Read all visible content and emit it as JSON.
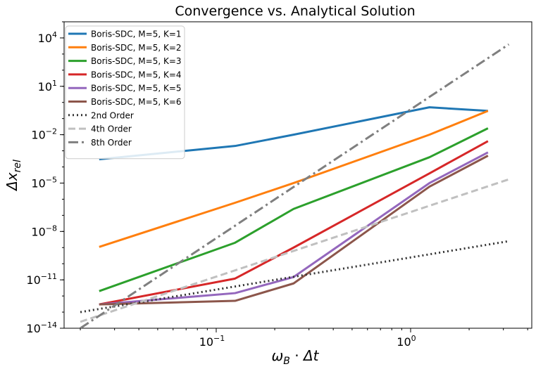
{
  "chart_data": {
    "type": "line",
    "title": "Convergence vs. Analytical Solution",
    "xlabel": "ω_B · Δt",
    "ylabel": "Δx_rel",
    "xscale": "log",
    "yscale": "log",
    "xlim": [
      0.0165,
      4.2
    ],
    "ylim": [
      1e-14,
      100000.0
    ],
    "x_ticks": [
      {
        "value": 0.1,
        "base": "10",
        "exp": "−1"
      },
      {
        "value": 1,
        "base": "10",
        "exp": "0"
      }
    ],
    "y_ticks": [
      {
        "value": 1e-14,
        "base": "10",
        "exp": "−14"
      },
      {
        "value": 1e-11,
        "base": "10",
        "exp": "−11"
      },
      {
        "value": 1e-08,
        "base": "10",
        "exp": "−8"
      },
      {
        "value": 1e-05,
        "base": "10",
        "exp": "−5"
      },
      {
        "value": 0.01,
        "base": "10",
        "exp": "−2"
      },
      {
        "value": 10,
        "base": "10",
        "exp": "1"
      },
      {
        "value": 10000.0,
        "base": "10",
        "exp": "4"
      }
    ],
    "grid": false,
    "legend_position": "top-left",
    "series": [
      {
        "name": "Boris-SDC, M=5, K=1",
        "color": "#1f77b4",
        "dash": "solid",
        "x": [
          0.025,
          0.125,
          0.25,
          1.25,
          2.5
        ],
        "y": [
          0.0003,
          0.002,
          0.01,
          0.5,
          0.3
        ]
      },
      {
        "name": "Boris-SDC, M=5, K=2",
        "color": "#ff7f0e",
        "dash": "solid",
        "x": [
          0.025,
          0.125,
          0.25,
          1.25,
          2.5
        ],
        "y": [
          1.1e-09,
          6e-07,
          1e-05,
          0.01,
          0.3
        ]
      },
      {
        "name": "Boris-SDC, M=5, K=3",
        "color": "#2ca02c",
        "dash": "solid",
        "x": [
          0.025,
          0.125,
          0.25,
          1.25,
          2.5
        ],
        "y": [
          2e-12,
          2e-09,
          2.5e-07,
          0.0004,
          0.025
        ]
      },
      {
        "name": "Boris-SDC, M=5, K=4",
        "color": "#d62728",
        "dash": "solid",
        "x": [
          0.025,
          0.125,
          0.25,
          1.25,
          2.5
        ],
        "y": [
          3e-13,
          1.2e-11,
          1e-09,
          4e-05,
          0.004
        ]
      },
      {
        "name": "Boris-SDC, M=5, K=5",
        "color": "#9467bd",
        "dash": "solid",
        "x": [
          0.025,
          0.125,
          0.25,
          1.25,
          2.5
        ],
        "y": [
          3e-13,
          1.5e-12,
          1.5e-11,
          1e-05,
          0.0008
        ]
      },
      {
        "name": "Boris-SDC, M=5, K=6",
        "color": "#8c564b",
        "dash": "solid",
        "x": [
          0.025,
          0.125,
          0.25,
          1.25,
          2.5
        ],
        "y": [
          3e-13,
          5e-13,
          6e-12,
          6e-06,
          0.0005
        ]
      },
      {
        "name": "2nd Order",
        "color": "#333333",
        "dash": "dotted",
        "x": [
          0.02,
          3.2
        ],
        "y": [
          1e-13,
          2.5e-09
        ]
      },
      {
        "name": "4th Order",
        "color": "#c0c0c0",
        "dash": "dashed",
        "x": [
          0.02,
          3.2
        ],
        "y": [
          2.5e-14,
          1.7e-05
        ]
      },
      {
        "name": "8th Order",
        "color": "#7f7f7f",
        "dash": "dashdot",
        "x": [
          0.02,
          3.2
        ],
        "y": [
          1e-14,
          4000.0
        ]
      }
    ]
  }
}
